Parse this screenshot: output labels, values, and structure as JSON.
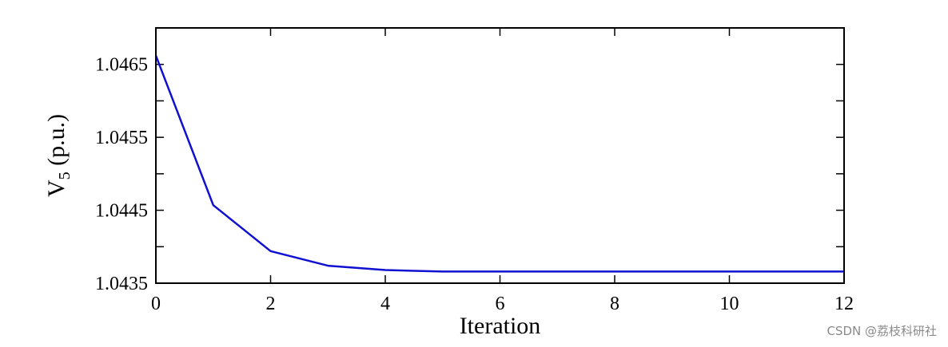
{
  "chart_data": {
    "type": "line",
    "title": "",
    "xlabel": "Iteration",
    "ylabel_main": "V",
    "ylabel_sub": "5",
    "ylabel_rest": " (p.u.)",
    "xlim": [
      0,
      12
    ],
    "ylim": [
      1.0435,
      1.047
    ],
    "xticks": [
      0,
      2,
      4,
      6,
      8,
      10,
      12
    ],
    "xtick_labels": [
      "0",
      "2",
      "4",
      "6",
      "8",
      "10",
      "12"
    ],
    "yticks": [
      1.0435,
      1.0445,
      1.0455,
      1.0465
    ],
    "ytick_labels": [
      "1.0435",
      "1.0445",
      "1.0455",
      "1.0465"
    ],
    "yticks_minor": [
      1.044,
      1.045,
      1.046
    ],
    "grid": false,
    "series": [
      {
        "color": "#1010d0",
        "x": [
          0,
          1,
          2,
          3,
          4,
          5,
          6,
          7,
          8,
          9,
          10,
          11,
          12
        ],
        "y": [
          1.04662,
          1.04457,
          1.04394,
          1.04374,
          1.04368,
          1.04366,
          1.04366,
          1.04366,
          1.04366,
          1.04366,
          1.04366,
          1.04366,
          1.04366
        ]
      }
    ]
  },
  "watermark": "CSDN @荔枝科研社"
}
